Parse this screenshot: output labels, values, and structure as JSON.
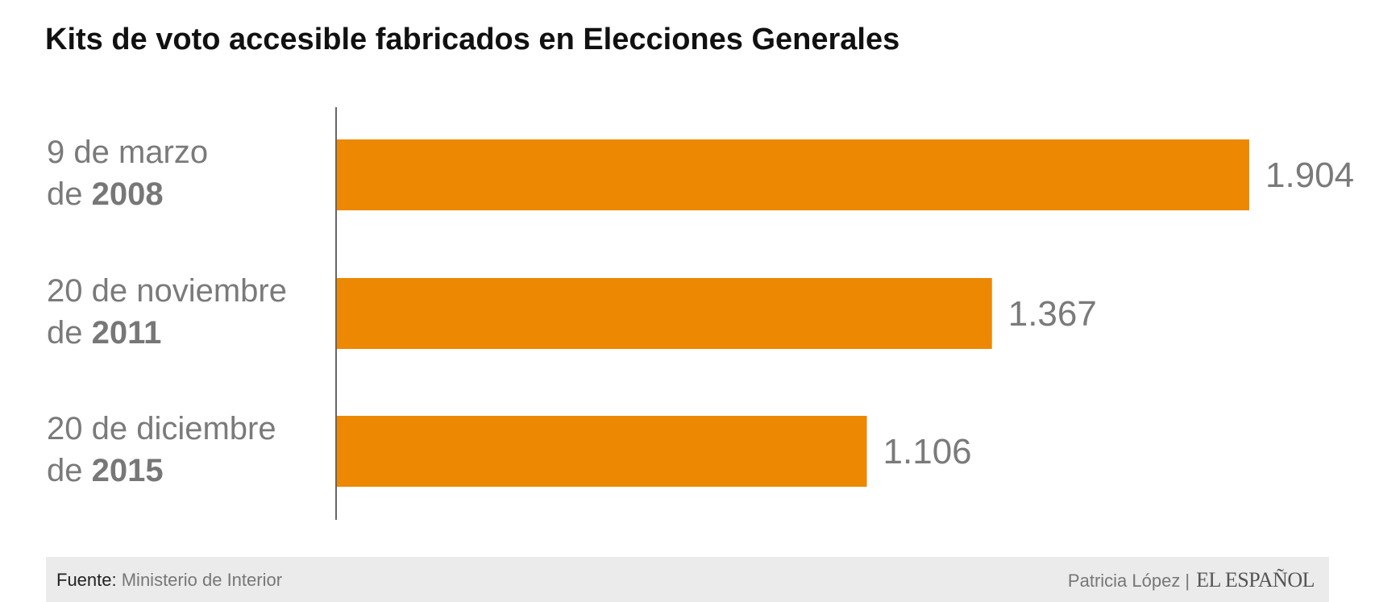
{
  "title": "Kits de voto accesible fabricados en Elecciones Generales",
  "colors": {
    "bar": "#ed8802",
    "label": "#7a7a7a",
    "axis": "#333333",
    "footer_bg": "#ebebeb"
  },
  "chart_data": {
    "type": "bar",
    "orientation": "horizontal",
    "categories": [
      {
        "line1": "9 de marzo",
        "line2_prefix": "de ",
        "line2_bold": "2008"
      },
      {
        "line1": "20 de noviembre",
        "line2_prefix": "de ",
        "line2_bold": "2011"
      },
      {
        "line1": "20 de diciembre",
        "line2_prefix": "de ",
        "line2_bold": "2015"
      }
    ],
    "values": [
      1904,
      1367,
      1106
    ],
    "value_labels": [
      "1.904",
      "1.367",
      "1.106"
    ],
    "grid": false
  },
  "footer": {
    "source_label": "Fuente:",
    "source_value": "Ministerio de Interior",
    "author": "Patricia López",
    "separator": "|",
    "logo_text": "EL ESPAÑOL"
  }
}
